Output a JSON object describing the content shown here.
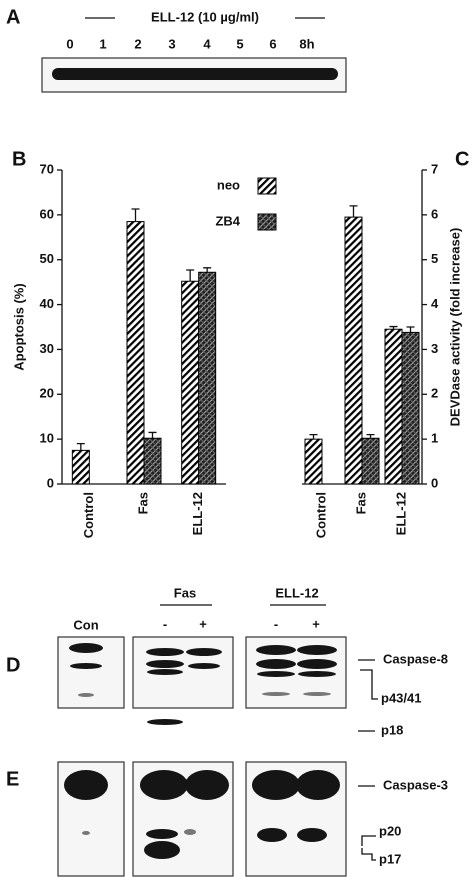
{
  "panel_a": {
    "label": "A",
    "treatment": "ELL-12 (10 µg/ml)",
    "timepoints": [
      "0",
      "1",
      "2",
      "3",
      "4",
      "5",
      "6",
      "8h"
    ]
  },
  "chart_data": [
    {
      "type": "bar",
      "panel_label": "B",
      "y_label": "Apoptosis (%)",
      "categories": [
        "Control",
        "Fas",
        "ELL-12"
      ],
      "ylim": [
        0,
        70
      ],
      "yticks": [
        0,
        10,
        20,
        30,
        40,
        50,
        60,
        70
      ],
      "axis_side": "left",
      "series": [
        {
          "name": "neo",
          "color": "#000000",
          "hatch": "diagonal",
          "values": [
            7.5,
            58.5,
            45.2
          ],
          "errors": [
            1.5,
            2.8,
            2.5
          ]
        },
        {
          "name": "ZB4",
          "color": "#000000",
          "hatch": "cross",
          "values": [
            null,
            10.2,
            47.2
          ],
          "errors": [
            null,
            1.3,
            1.0
          ]
        }
      ]
    },
    {
      "type": "bar",
      "panel_label": "C",
      "y_label": "DEVDase activity (fold increase)",
      "categories": [
        "Control",
        "Fas",
        "ELL-12"
      ],
      "ylim": [
        0,
        7
      ],
      "yticks": [
        0,
        1,
        2,
        3,
        4,
        5,
        6,
        7
      ],
      "axis_side": "right",
      "series": [
        {
          "name": "neo",
          "color": "#000000",
          "hatch": "diagonal",
          "values": [
            1.0,
            5.95,
            3.45
          ],
          "errors": [
            0.1,
            0.25,
            0.06
          ]
        },
        {
          "name": "ZB4",
          "color": "#000000",
          "hatch": "cross",
          "values": [
            null,
            1.02,
            3.38
          ],
          "errors": [
            null,
            0.08,
            0.12
          ]
        }
      ]
    }
  ],
  "panels_de": {
    "con": "Con",
    "fas": "Fas",
    "ell12": "ELL-12",
    "minus": "-",
    "plus": "+",
    "d_label": "D",
    "e_label": "E",
    "d_markers": [
      "Caspase-8",
      "p43/41",
      "p18"
    ],
    "e_markers": [
      "Caspase-3",
      "p20",
      "p17"
    ]
  }
}
